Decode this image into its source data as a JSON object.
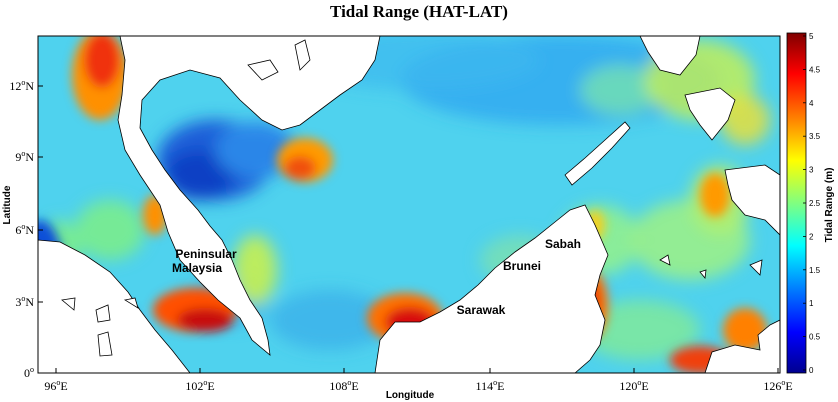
{
  "title": "Tidal Range (HAT-LAT)",
  "x_axis": {
    "label": "Longitude",
    "ticks": [
      {
        "deg": "96",
        "sup": "o",
        "hem": "E"
      },
      {
        "deg": "102",
        "sup": "o",
        "hem": "E"
      },
      {
        "deg": "108",
        "sup": "o",
        "hem": "E"
      },
      {
        "deg": "114",
        "sup": "o",
        "hem": "E"
      },
      {
        "deg": "120",
        "sup": "o",
        "hem": "E"
      },
      {
        "deg": "126",
        "sup": "o",
        "hem": "E"
      }
    ]
  },
  "y_axis": {
    "label": "Latitude",
    "ticks": [
      {
        "deg": "0",
        "sup": "o",
        "hem": ""
      },
      {
        "deg": "3",
        "sup": "o",
        "hem": "N"
      },
      {
        "deg": "6",
        "sup": "o",
        "hem": "N"
      },
      {
        "deg": "9",
        "sup": "o",
        "hem": "N"
      },
      {
        "deg": "12",
        "sup": "o",
        "hem": "N"
      }
    ]
  },
  "colorbar": {
    "label": "Tidal Range (m)",
    "ticks": [
      "0",
      "0.5",
      "1",
      "1.5",
      "2",
      "2.5",
      "3",
      "3.5",
      "4",
      "4.5",
      "5"
    ],
    "colors": [
      "#00008f",
      "#0000ff",
      "#0080ff",
      "#00ffff",
      "#80ff80",
      "#ffff00",
      "#ff8000",
      "#ff0000",
      "#800000"
    ]
  },
  "places": [
    {
      "id": "peninsular",
      "text": "Peninsular"
    },
    {
      "id": "malaysia",
      "text": "Malaysia"
    },
    {
      "id": "sarawak",
      "text": "Sarawak"
    },
    {
      "id": "brunei",
      "text": "Brunei"
    },
    {
      "id": "sabah",
      "text": "Sabah"
    }
  ]
}
